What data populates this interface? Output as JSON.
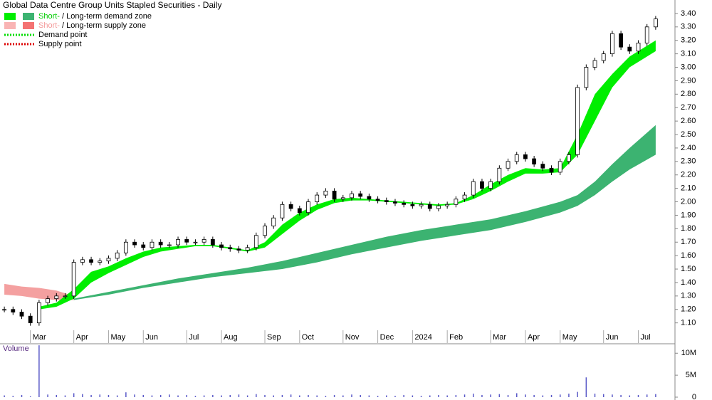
{
  "chart_data": [
    {
      "type": "price",
      "title": "Global Data Centre Group Units Stapled Securities - Daily",
      "categories": [
        null,
        null,
        null,
        "Mar",
        null,
        null,
        null,
        null,
        "Apr",
        null,
        null,
        null,
        "May",
        null,
        null,
        null,
        "Jun",
        null,
        null,
        null,
        null,
        "Jul",
        null,
        null,
        null,
        "Aug",
        null,
        null,
        null,
        null,
        "Sep",
        null,
        null,
        null,
        "Oct",
        null,
        null,
        null,
        null,
        "Nov",
        null,
        null,
        null,
        "Dec",
        null,
        null,
        null,
        "2024",
        null,
        null,
        null,
        "Feb",
        null,
        null,
        null,
        null,
        "Mar",
        null,
        null,
        null,
        "Apr",
        null,
        null,
        null,
        "May",
        null,
        null,
        null,
        null,
        "Jun",
        null,
        null,
        null,
        "Jul",
        null,
        null
      ],
      "values": [
        1.2,
        1.18,
        1.15,
        1.1,
        1.25,
        1.28,
        1.3,
        1.3,
        1.55,
        1.57,
        1.55,
        1.56,
        1.58,
        1.62,
        1.7,
        1.68,
        1.66,
        1.7,
        1.68,
        1.68,
        1.72,
        1.7,
        1.7,
        1.72,
        1.68,
        1.66,
        1.65,
        1.64,
        1.66,
        1.75,
        1.82,
        1.88,
        1.98,
        1.95,
        1.92,
        2.0,
        2.05,
        2.08,
        2.02,
        2.03,
        2.06,
        2.04,
        2.02,
        2.01,
        2.0,
        1.99,
        1.98,
        1.97,
        1.98,
        1.95,
        1.97,
        1.98,
        2.02,
        2.05,
        2.15,
        2.1,
        2.15,
        2.25,
        2.3,
        2.35,
        2.32,
        2.28,
        2.25,
        2.22,
        2.3,
        2.35,
        2.85,
        3.0,
        3.05,
        3.1,
        3.25,
        3.15,
        3.12,
        3.18,
        3.3,
        3.36
      ],
      "ylim": [
        0.95,
        3.5
      ],
      "yticks": [
        {
          "value": 1.1,
          "label": "1.10"
        },
        {
          "value": 1.2,
          "label": "1.20"
        },
        {
          "value": 1.3,
          "label": "1.30"
        },
        {
          "value": 1.4,
          "label": "1.40"
        },
        {
          "value": 1.5,
          "label": "1.50"
        },
        {
          "value": 1.6,
          "label": "1.60"
        },
        {
          "value": 1.7,
          "label": "1.70"
        },
        {
          "value": 1.8,
          "label": "1.80"
        },
        {
          "value": 1.9,
          "label": "1.90"
        },
        {
          "value": 2.0,
          "label": "2.00"
        },
        {
          "value": 2.1,
          "label": "2.10"
        },
        {
          "value": 2.2,
          "label": "2.20"
        },
        {
          "value": 2.3,
          "label": "2.30"
        },
        {
          "value": 2.4,
          "label": "2.40"
        },
        {
          "value": 2.5,
          "label": "2.50"
        },
        {
          "value": 2.6,
          "label": "2.60"
        },
        {
          "value": 2.7,
          "label": "2.70"
        },
        {
          "value": 2.8,
          "label": "2.80"
        },
        {
          "value": 2.9,
          "label": "2.90"
        },
        {
          "value": 3.0,
          "label": "3.00"
        },
        {
          "value": 3.1,
          "label": "3.10"
        },
        {
          "value": 3.2,
          "label": "3.20"
        },
        {
          "value": 3.3,
          "label": "3.30"
        },
        {
          "value": 3.4,
          "label": "3.40"
        }
      ],
      "zones": [
        {
          "color": "#f4a0a0",
          "x": [
            0,
            2,
            4,
            6,
            8
          ],
          "upper": [
            1.39,
            1.37,
            1.36,
            1.34,
            1.3
          ],
          "lower": [
            1.31,
            1.3,
            1.28,
            1.27,
            1.27
          ]
        },
        {
          "color": "#3cb371",
          "x": [
            8,
            12,
            16,
            20,
            24,
            28,
            32,
            36,
            40,
            44,
            48,
            52,
            56,
            60,
            64,
            66,
            68,
            70,
            72,
            75
          ],
          "upper": [
            1.28,
            1.33,
            1.38,
            1.43,
            1.47,
            1.51,
            1.56,
            1.62,
            1.68,
            1.74,
            1.79,
            1.83,
            1.87,
            1.93,
            2.0,
            2.05,
            2.15,
            2.28,
            2.4,
            2.57
          ],
          "lower": [
            1.27,
            1.31,
            1.36,
            1.4,
            1.44,
            1.47,
            1.5,
            1.55,
            1.61,
            1.66,
            1.71,
            1.75,
            1.79,
            1.85,
            1.92,
            1.97,
            2.05,
            2.15,
            2.24,
            2.35
          ]
        },
        {
          "color": "#00ee00",
          "x": [
            4,
            6,
            8,
            10,
            12,
            14,
            16,
            18,
            20,
            22,
            24,
            26,
            28,
            30,
            32,
            34,
            36,
            38,
            40,
            42,
            44,
            46,
            48,
            50,
            52,
            54,
            56,
            58,
            60,
            62,
            64,
            66,
            68,
            70,
            72,
            75
          ],
          "upper": [
            1.22,
            1.25,
            1.35,
            1.48,
            1.52,
            1.58,
            1.63,
            1.66,
            1.67,
            1.68,
            1.68,
            1.66,
            1.64,
            1.7,
            1.83,
            1.92,
            1.98,
            2.02,
            2.03,
            2.02,
            2.01,
            2.0,
            1.99,
            1.98,
            1.99,
            2.05,
            2.13,
            2.2,
            2.25,
            2.24,
            2.25,
            2.5,
            2.8,
            2.95,
            3.08,
            3.2
          ],
          "lower": [
            1.2,
            1.22,
            1.28,
            1.4,
            1.47,
            1.53,
            1.59,
            1.63,
            1.65,
            1.67,
            1.67,
            1.65,
            1.63,
            1.66,
            1.76,
            1.86,
            1.94,
            1.99,
            2.01,
            2.01,
            2.0,
            1.99,
            1.98,
            1.97,
            1.98,
            2.02,
            2.08,
            2.15,
            2.21,
            2.21,
            2.22,
            2.35,
            2.6,
            2.85,
            3.0,
            3.12
          ]
        }
      ],
      "legend": [
        {
          "swatches": [
            "#00ee00",
            "#3cb371"
          ],
          "texts": [
            "Short-",
            "/ Long-term demand zone"
          ],
          "text_color": "#00cc00"
        },
        {
          "swatches": [
            "#f9b4b4",
            "#f47272"
          ],
          "texts": [
            "Short-",
            "/ Long-term supply zone"
          ],
          "text_color": "#f49a9a"
        },
        {
          "dotted": "#00dd00",
          "texts": [
            "Demand point"
          ]
        },
        {
          "dotted": "#dd0000",
          "texts": [
            "Supply point"
          ]
        }
      ]
    },
    {
      "type": "bar",
      "title": "Volume",
      "color": "#5a5ac8",
      "values": [
        400000,
        300000,
        500000,
        200000,
        11800000,
        600000,
        500000,
        400000,
        900000,
        700000,
        500000,
        600000,
        500000,
        400000,
        1100000,
        600000,
        500000,
        400000,
        500000,
        600000,
        400000,
        500000,
        300000,
        400000,
        500000,
        400000,
        500000,
        600000,
        400000,
        700000,
        500000,
        400000,
        500000,
        600000,
        400000,
        500000,
        400000,
        300000,
        500000,
        400000,
        600000,
        500000,
        400000,
        300000,
        400000,
        300000,
        500000,
        400000,
        300000,
        400000,
        500000,
        400000,
        500000,
        600000,
        800000,
        500000,
        600000,
        700000,
        500000,
        900000,
        600000,
        500000,
        400000,
        500000,
        600000,
        800000,
        1200000,
        4500000,
        800000,
        700000,
        600000,
        500000,
        400000,
        500000,
        600000,
        700000
      ],
      "ylim": [
        0,
        11500000
      ],
      "yticks": [
        0,
        {
          "value": 5000000,
          "label": "5M"
        },
        {
          "value": 10000000,
          "label": "10M"
        }
      ]
    }
  ]
}
